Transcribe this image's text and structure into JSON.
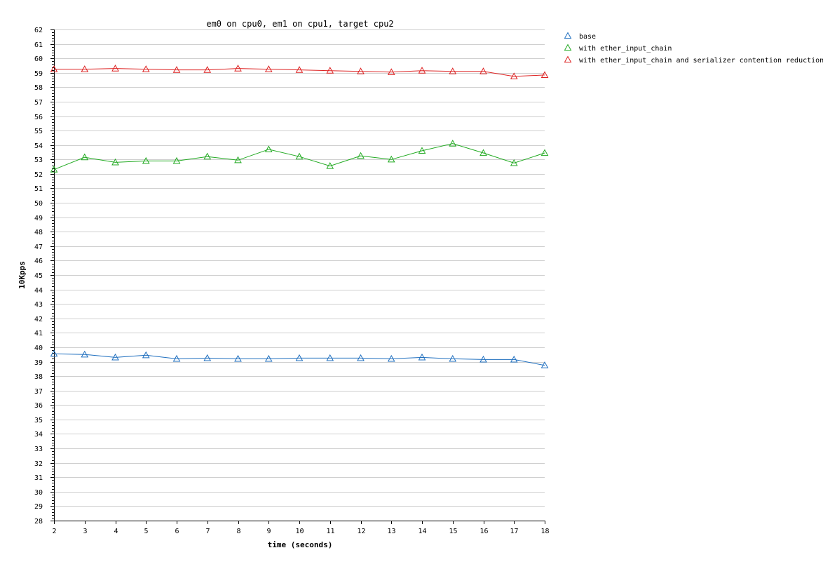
{
  "chart_data": {
    "type": "line",
    "title": "em0 on cpu0, em1 on cpu1, target cpu2",
    "xlabel": "time (seconds)",
    "ylabel": "10Kpps",
    "xlim": [
      2,
      18
    ],
    "ylim": [
      28,
      62
    ],
    "x_ticks": [
      2,
      3,
      4,
      5,
      6,
      7,
      8,
      9,
      10,
      11,
      12,
      13,
      14,
      15,
      16,
      17,
      18
    ],
    "y_ticks": [
      28,
      29,
      30,
      31,
      32,
      33,
      34,
      35,
      36,
      37,
      38,
      39,
      40,
      41,
      42,
      43,
      44,
      45,
      46,
      47,
      48,
      49,
      50,
      51,
      52,
      53,
      54,
      55,
      56,
      57,
      58,
      59,
      60,
      61,
      62
    ],
    "grid": true,
    "legend_position": "top-right",
    "marker": "triangle",
    "x": [
      2,
      3,
      4,
      5,
      6,
      7,
      8,
      9,
      10,
      11,
      12,
      13,
      14,
      15,
      16,
      17,
      18
    ],
    "series": [
      {
        "name": "base",
        "color": "#1f6fbf",
        "values": [
          39.55,
          39.5,
          39.3,
          39.45,
          39.2,
          39.25,
          39.2,
          39.2,
          39.25,
          39.25,
          39.25,
          39.2,
          39.3,
          39.2,
          39.15,
          39.15,
          38.75
        ]
      },
      {
        "name": "with ether_input_chain",
        "color": "#22aa22",
        "values": [
          52.3,
          53.15,
          52.8,
          52.9,
          52.9,
          53.2,
          52.95,
          53.7,
          53.2,
          52.55,
          53.25,
          53.0,
          53.6,
          54.1,
          53.45,
          52.75,
          53.45
        ]
      },
      {
        "name": "with ether_input_chain and serializer contention reduction",
        "color": "#dd2222",
        "values": [
          59.25,
          59.25,
          59.3,
          59.25,
          59.2,
          59.2,
          59.3,
          59.25,
          59.2,
          59.15,
          59.1,
          59.05,
          59.15,
          59.1,
          59.1,
          58.75,
          58.85
        ]
      }
    ]
  }
}
